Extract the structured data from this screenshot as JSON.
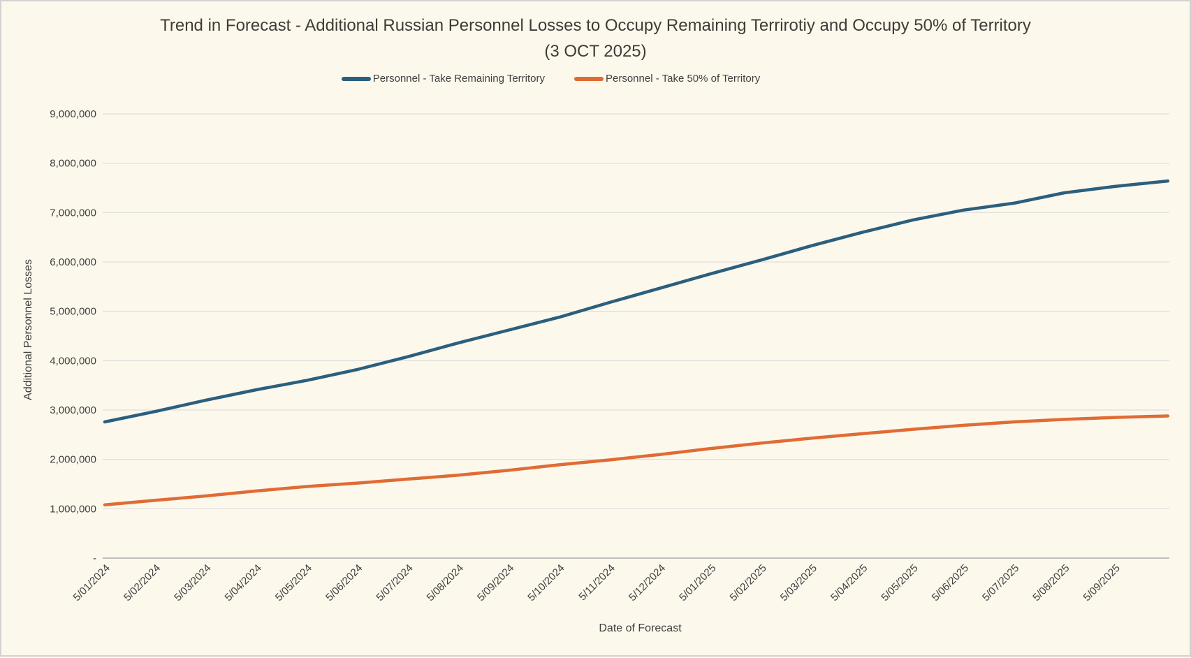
{
  "window": {
    "background_color": "#fdf8ec",
    "border_color": "#d2d2d2"
  },
  "title": {
    "line1": "Trend in Forecast - Additional Russian Personnel Losses to Occupy Remaining Terrirotiy and Occupy 50% of Territory",
    "line2": "(3 OCT 2025)"
  },
  "chart_data": {
    "type": "line",
    "title": "Trend in Forecast - Additional Russian Personnel Losses to Occupy Remaining Terrirotiy and Occupy 50% of Territory (3 OCT 2025)",
    "xlabel": "Date of Forecast",
    "ylabel": "Additional Personnel Losses",
    "ylim": [
      0,
      9000000
    ],
    "grid": "horizontal",
    "grid_color": "#d9d9d9",
    "axis_line_color": "#bfbfbf",
    "tick_label_color": "#404040",
    "legend_position": "top",
    "y_ticks": [
      {
        "label": "9,000,000",
        "value": 9000000
      },
      {
        "label": "8,000,000",
        "value": 8000000
      },
      {
        "label": "7,000,000",
        "value": 7000000
      },
      {
        "label": "6,000,000",
        "value": 6000000
      },
      {
        "label": "5,000,000",
        "value": 5000000
      },
      {
        "label": "4,000,000",
        "value": 4000000
      },
      {
        "label": "3,000,000",
        "value": 3000000
      },
      {
        "label": "2,000,000",
        "value": 2000000
      },
      {
        "label": "1,000,000",
        "value": 1000000
      },
      {
        "label": "-",
        "value": 0
      }
    ],
    "x_tick_labels": [
      "5/01/2024",
      "5/02/2024",
      "5/03/2024",
      "5/04/2024",
      "5/05/2024",
      "5/06/2024",
      "5/07/2024",
      "5/08/2024",
      "5/09/2024",
      "5/10/2024",
      "5/11/2024",
      "5/12/2024",
      "5/01/2025",
      "5/02/2025",
      "5/03/2025",
      "5/04/2025",
      "5/05/2025",
      "5/06/2025",
      "5/07/2025",
      "5/08/2025",
      "5/09/2025"
    ],
    "x_positions_months": [
      0,
      1,
      2,
      3,
      4,
      5,
      6,
      7,
      8,
      9,
      10,
      11,
      12,
      13,
      14,
      15,
      16,
      17,
      18,
      19,
      20,
      21.05
    ],
    "series": [
      {
        "name": "Personnel - Take Remaining Territory",
        "color": "#2b5f7e",
        "values": [
          2760000,
          2970000,
          3200000,
          3410000,
          3600000,
          3820000,
          4080000,
          4360000,
          4620000,
          4880000,
          5180000,
          5470000,
          5760000,
          6040000,
          6330000,
          6600000,
          6850000,
          7050000,
          7190000,
          7400000,
          7530000,
          7640000
        ]
      },
      {
        "name": "Personnel - Take 50% of Territory",
        "color": "#e06c35",
        "values": [
          1080000,
          1170000,
          1260000,
          1360000,
          1450000,
          1520000,
          1600000,
          1680000,
          1780000,
          1890000,
          1990000,
          2100000,
          2220000,
          2330000,
          2430000,
          2520000,
          2610000,
          2690000,
          2760000,
          2810000,
          2850000,
          2880000
        ]
      }
    ]
  }
}
